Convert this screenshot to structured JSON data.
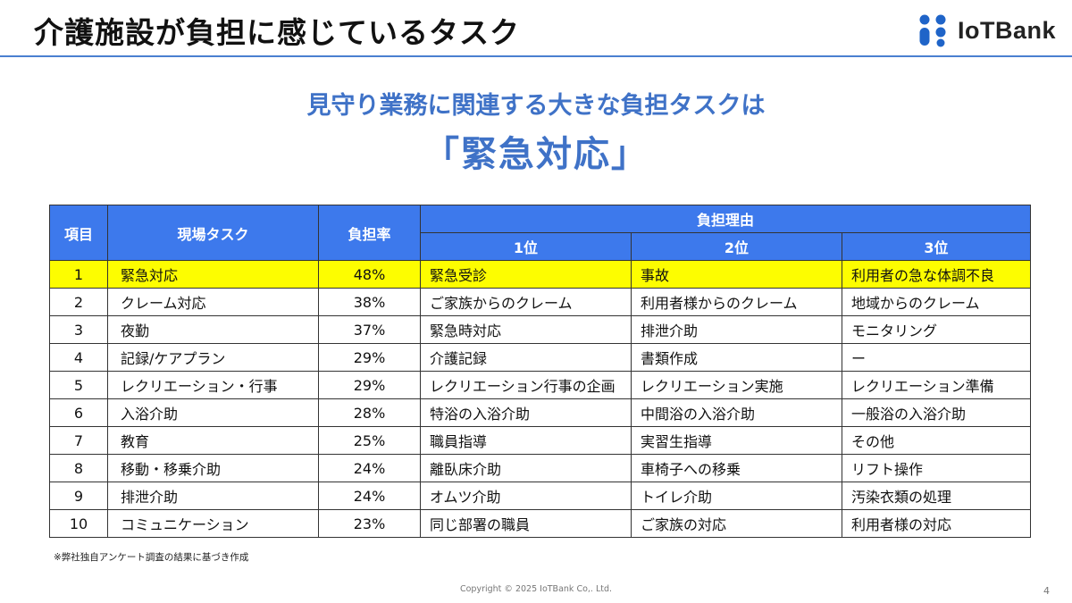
{
  "header": {
    "title": "介護施設が負担に感じているタスク",
    "logo_text": "IoTBank",
    "logo_color": "#1f64c8"
  },
  "subtitle": "見守り業務に関連する大きな負担タスクは",
  "highlight": "「緊急対応」",
  "table": {
    "headers": {
      "item": "項目",
      "task": "現場タスク",
      "rate": "負担率",
      "reason": "負担理由",
      "rank1": "1位",
      "rank2": "2位",
      "rank3": "3位"
    },
    "rows": [
      {
        "no": "1",
        "task": "緊急対応",
        "rate": "48%",
        "r1": "緊急受診",
        "r2": "事故",
        "r3": "利用者の急な体調不良"
      },
      {
        "no": "2",
        "task": "クレーム対応",
        "rate": "38%",
        "r1": "ご家族からのクレーム",
        "r2": "利用者様からのクレーム",
        "r3": "地域からのクレーム"
      },
      {
        "no": "3",
        "task": "夜勤",
        "rate": "37%",
        "r1": "緊急時対応",
        "r2": "排泄介助",
        "r3": "モニタリング"
      },
      {
        "no": "4",
        "task": "記録/ケアプラン",
        "rate": "29%",
        "r1": "介護記録",
        "r2": "書類作成",
        "r3": "ー"
      },
      {
        "no": "5",
        "task": "レクリエーション・行事",
        "rate": "29%",
        "r1": "レクリエーション行事の企画",
        "r2": "レクリエーション実施",
        "r3": "レクリエーション準備"
      },
      {
        "no": "6",
        "task": "入浴介助",
        "rate": "28%",
        "r1": "特浴の入浴介助",
        "r2": "中間浴の入浴介助",
        "r3": "一般浴の入浴介助"
      },
      {
        "no": "7",
        "task": "教育",
        "rate": "25%",
        "r1": "職員指導",
        "r2": "実習生指導",
        "r3": "その他"
      },
      {
        "no": "8",
        "task": "移動・移乗介助",
        "rate": "24%",
        "r1": "離臥床介助",
        "r2": "車椅子への移乗",
        "r3": "リフト操作"
      },
      {
        "no": "9",
        "task": "排泄介助",
        "rate": "24%",
        "r1": "オムツ介助",
        "r2": "トイレ介助",
        "r3": "汚染衣類の処理"
      },
      {
        "no": "10",
        "task": "コミュニケーション",
        "rate": "23%",
        "r1": "同じ部署の職員",
        "r2": "ご家族の対応",
        "r3": "利用者様の対応"
      }
    ],
    "highlight_color": "#fdfd00",
    "header_color": "#3d79ec"
  },
  "footnote": "※弊社独自アンケート調査の結果に基づき作成",
  "copyright": "Copyright © 2025 IoTBank Co,. Ltd.",
  "page_number": "4"
}
